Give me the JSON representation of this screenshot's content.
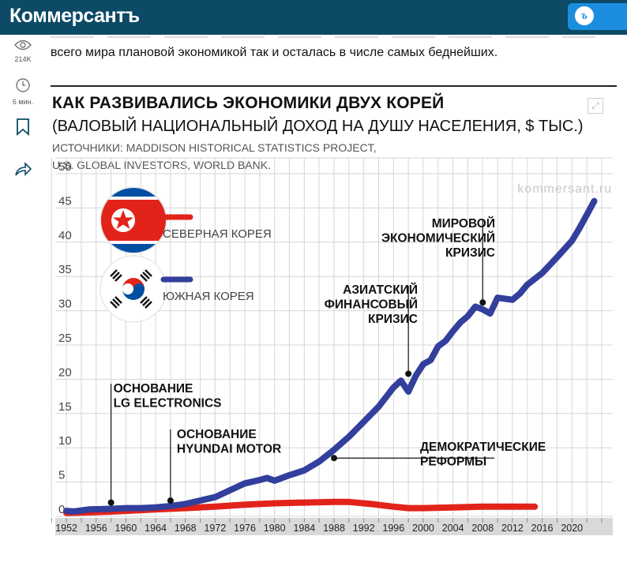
{
  "header": {
    "logo": "Коммерсантъ",
    "button_icon": "ъ-logo-icon"
  },
  "sidebar": {
    "views": "214K",
    "read_time": "6 мин."
  },
  "article": {
    "intro": "всего мира плановой экономикой так и осталась в числе самых беднейших."
  },
  "figure": {
    "title": "КАК РАЗВИВАЛИСЬ ЭКОНОМИКИ ДВУХ КОРЕЙ",
    "subtitle": "(ВАЛОВЫЙ НАЦИОНАЛЬНЫЙ ДОХОД НА ДУШУ НАСЕЛЕНИЯ, $ ТЫС.)",
    "source_line1": "ИСТОЧНИКИ: MADDISON HISTORICAL STATISTICS PROJECT,",
    "source_line2": "U.S. GLOBAL INVESTORS, WORLD BANK.",
    "watermark": "kommersant.ru"
  },
  "chart_data": {
    "type": "line",
    "title": "КАК РАЗВИВАЛИСЬ ЭКОНОМИКИ ДВУХ КОРЕЙ",
    "subtitle": "(ВАЛОВЫЙ НАЦИОНАЛЬНЫЙ ДОХОД НА ДУШУ НАСЕЛЕНИЯ, $ ТЫС.)",
    "xlim": [
      1950,
      2025
    ],
    "ylim": [
      0,
      50
    ],
    "x_ticks": [
      1952,
      1956,
      1960,
      1964,
      1968,
      1972,
      1976,
      1980,
      1984,
      1988,
      1992,
      1996,
      2000,
      2004,
      2008,
      2012,
      2016,
      2020
    ],
    "y_ticks": [
      0,
      5,
      10,
      15,
      20,
      25,
      30,
      35,
      40,
      45,
      50
    ],
    "grid": true,
    "legend_position": "top-left",
    "series": [
      {
        "name": "СЕВЕРНАЯ КОРЕЯ",
        "color": "#e2231a",
        "x": [
          1952,
          1956,
          1960,
          1964,
          1968,
          1972,
          1976,
          1980,
          1984,
          1988,
          1990,
          1993,
          1996,
          1998,
          2000,
          2004,
          2008,
          2012,
          2015
        ],
        "y": [
          0.5,
          0.6,
          0.8,
          1.0,
          1.2,
          1.4,
          1.7,
          1.9,
          2.0,
          2.1,
          2.1,
          1.8,
          1.4,
          1.2,
          1.2,
          1.3,
          1.4,
          1.4,
          1.4
        ]
      },
      {
        "name": "ЮЖНАЯ КОРЕЯ",
        "color": "#333f9c",
        "x": [
          1952,
          1953,
          1955,
          1958,
          1960,
          1962,
          1964,
          1966,
          1968,
          1970,
          1972,
          1974,
          1976,
          1978,
          1979,
          1980,
          1982,
          1984,
          1986,
          1988,
          1990,
          1992,
          1994,
          1996,
          1997,
          1998,
          1999,
          2000,
          2001,
          2002,
          2003,
          2004,
          2005,
          2006,
          2007,
          2008,
          2009,
          2010,
          2012,
          2013,
          2014,
          2016,
          2018,
          2020,
          2021,
          2022,
          2023
        ],
        "y": [
          0.8,
          0.7,
          1.0,
          1.1,
          1.2,
          1.2,
          1.3,
          1.5,
          1.8,
          2.3,
          2.8,
          3.8,
          4.8,
          5.3,
          5.6,
          5.2,
          6.0,
          6.7,
          8.0,
          9.7,
          11.6,
          13.8,
          16.0,
          18.8,
          19.8,
          18.2,
          20.5,
          22.2,
          22.8,
          24.8,
          25.6,
          27.0,
          28.3,
          29.2,
          30.6,
          30.2,
          29.6,
          31.9,
          31.6,
          32.5,
          33.8,
          35.5,
          37.8,
          40.2,
          42.0,
          44.0,
          46.0
        ]
      }
    ],
    "annotations": [
      {
        "text": [
          "ОСНОВАНИЕ",
          "LG ELECTRONICS"
        ],
        "x": 1958,
        "y": 2.0
      },
      {
        "text": [
          "ОСНОВАНИЕ",
          "HYUNDAI MOTOR"
        ],
        "x": 1966,
        "y": 2.3
      },
      {
        "text": [
          "ДЕМОКРАТИЧЕСКИЕ",
          "РЕФОРМЫ"
        ],
        "x": 1988,
        "y": 8.5
      },
      {
        "text": [
          "АЗИАТСКИЙ",
          "ФИНАНСОВЫЙ",
          "КРИЗИС"
        ],
        "x": 1998,
        "y": 20.8
      },
      {
        "text": [
          "МИРОВОЙ",
          "ЭКОНОМИЧЕСКИЙ",
          "КРИЗИС"
        ],
        "x": 2008,
        "y": 31.2
      }
    ]
  }
}
